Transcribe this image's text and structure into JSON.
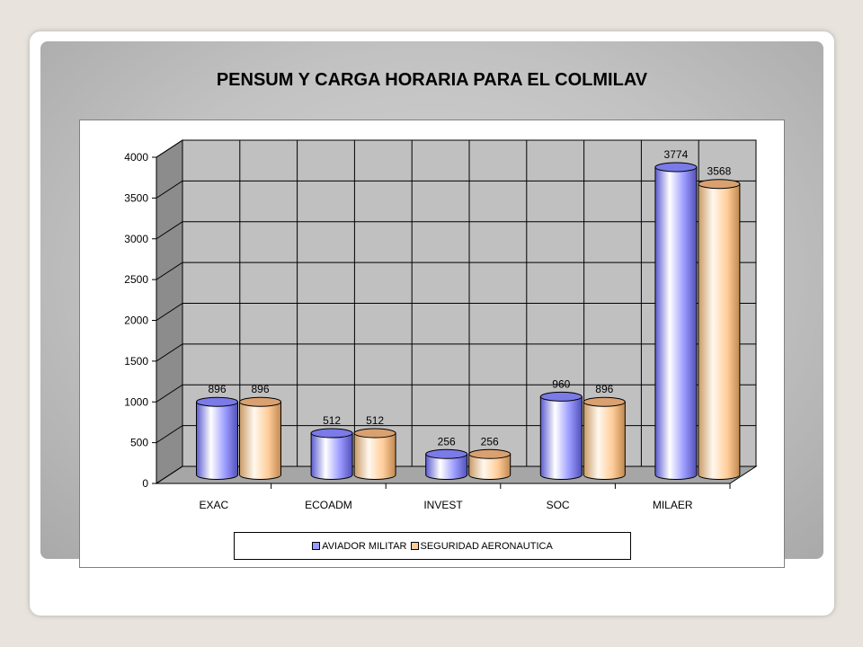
{
  "slide": {
    "title": "PENSUM Y CARGA HORARIA PARA EL COLMILAV"
  },
  "colors": {
    "series1": "#9a9aff",
    "series2": "#ffcc99",
    "floor": "#c0c0c0",
    "wall": "#c0c0c0",
    "gridline": "#000000"
  },
  "chart_data": {
    "type": "bar",
    "style": "3d-cylinder",
    "categories": [
      "EXAC",
      "ECOADM",
      "INVEST",
      "SOC",
      "MILAER"
    ],
    "series": [
      {
        "name": "AVIADOR MILITAR",
        "values": [
          896,
          512,
          256,
          960,
          3774
        ],
        "color": "#9a9aff"
      },
      {
        "name": "SEGURIDAD AERONAUTICA",
        "values": [
          896,
          512,
          256,
          896,
          3568
        ],
        "color": "#ffcc99"
      }
    ],
    "ylim": [
      0,
      4000
    ],
    "yticks": [
      "0",
      "500",
      "1000",
      "1500",
      "2000",
      "2500",
      "3000",
      "3500",
      "4000"
    ],
    "ytick_values": [
      0,
      500,
      1000,
      1500,
      2000,
      2500,
      3000,
      3500,
      4000
    ],
    "data_labels": true,
    "grid": true,
    "legend_position": "bottom"
  }
}
